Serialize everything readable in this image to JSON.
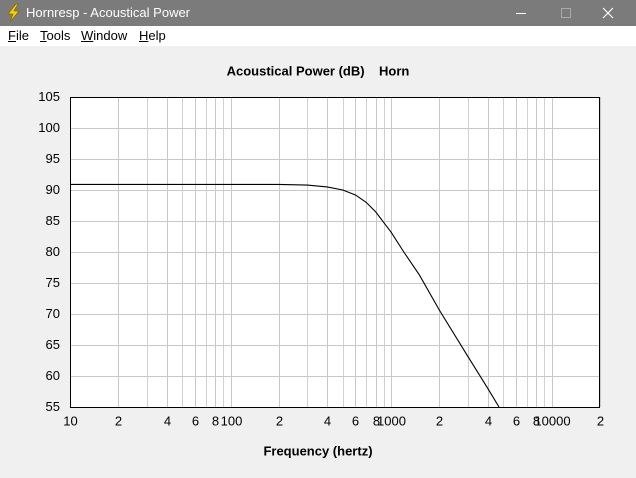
{
  "window": {
    "title": "Hornresp - Acoustical Power",
    "menu": [
      "File",
      "Tools",
      "Window",
      "Help"
    ]
  },
  "chart_data": {
    "type": "line",
    "title": "Acoustical Power (dB)    Horn",
    "xlabel": "Frequency (hertz)",
    "x": [
      10,
      20,
      50,
      100,
      200,
      300,
      400,
      500,
      600,
      700,
      800,
      1000,
      1200,
      1500,
      2000,
      3000,
      4000,
      4700
    ],
    "values": [
      90.9,
      90.9,
      90.9,
      90.9,
      90.9,
      90.8,
      90.5,
      90.0,
      89.2,
      88.0,
      86.5,
      83.2,
      80.0,
      76.3,
      70.6,
      63.2,
      58.0,
      55.0
    ],
    "color": "#000000",
    "xscale": "log",
    "xlim": [
      10,
      20000
    ],
    "ylim": [
      55,
      105
    ],
    "xticks": [
      10,
      {
        "value": 20,
        "label": "2"
      },
      {
        "value": 40,
        "label": "4"
      },
      {
        "value": 60,
        "label": "6"
      },
      {
        "value": 80,
        "label": "8"
      },
      100,
      {
        "value": 200,
        "label": "2"
      },
      {
        "value": 400,
        "label": "4"
      },
      {
        "value": 600,
        "label": "6"
      },
      {
        "value": 800,
        "label": "8"
      },
      1000,
      {
        "value": 2000,
        "label": "2"
      },
      {
        "value": 4000,
        "label": "4"
      },
      {
        "value": 6000,
        "label": "6"
      },
      {
        "value": 8000,
        "label": "8"
      },
      10000,
      {
        "value": 20000,
        "label": "2"
      }
    ],
    "x_minor_grid": [
      30,
      50,
      70,
      90,
      300,
      500,
      700,
      900,
      3000,
      5000,
      7000,
      9000
    ],
    "yticks": [
      55,
      60,
      65,
      70,
      75,
      80,
      85,
      90,
      95,
      100,
      105
    ],
    "grid": true
  }
}
